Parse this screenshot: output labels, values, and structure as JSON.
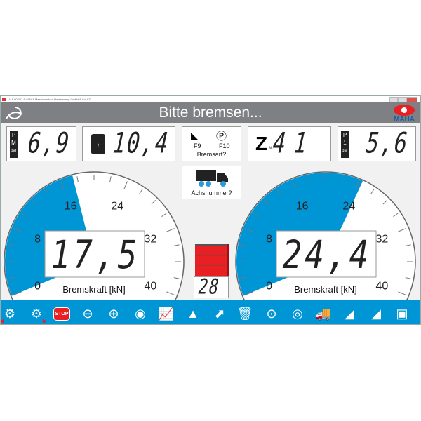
{
  "window": {
    "title": "V 8.00.001  © MAHA Maschinenbau Haldenwang GmbH & Co. KG"
  },
  "header": {
    "title": "Bitte bremsen...",
    "logo_text": "MAHA"
  },
  "colors": {
    "accent": "#0096d6",
    "header": "#7e8083",
    "alarm": "#e82024"
  },
  "top_displays": {
    "pm": {
      "label_top": "P",
      "label_mid": "M",
      "unit": "bar",
      "value": "6,9"
    },
    "weight": {
      "unit": "t",
      "value": "10,4"
    },
    "brake_type": {
      "key1": "F9",
      "key2": "F10",
      "label": "Bremsart?"
    },
    "z": {
      "symbol": "Z",
      "unit": "%",
      "value": "41"
    },
    "p1": {
      "label_top": "P",
      "label_mid": "1",
      "unit": "bar",
      "value": "5,6"
    }
  },
  "axle_button": {
    "label": "Achsnummer?"
  },
  "gauges": [
    {
      "value": 17.5,
      "display": "17,5",
      "label": "Bremskraft [kN]",
      "min": 0,
      "max": 40,
      "ticks": [
        "0",
        "8",
        "16",
        "24",
        "32",
        "40"
      ]
    },
    {
      "value": 24.4,
      "display": "24,4",
      "label": "Bremskraft [kN]",
      "min": 0,
      "max": 40,
      "ticks": [
        "0",
        "8",
        "16",
        "24",
        "32",
        "40"
      ]
    }
  ],
  "difference": {
    "value": "28",
    "bar_level": 1.0
  },
  "toolbar": {
    "icons": [
      "gear-left-icon",
      "gear-right-icon",
      "stop-icon",
      "minus-icon",
      "plus-icon",
      "disc-icon",
      "chart-icon",
      "weight-icon",
      "resize-icon",
      "trash-icon",
      "download-icon",
      "tire-icon",
      "truck-icon",
      "roller-icon",
      "roller-settings-icon",
      "save-icon"
    ],
    "stop_label": "STOP"
  }
}
